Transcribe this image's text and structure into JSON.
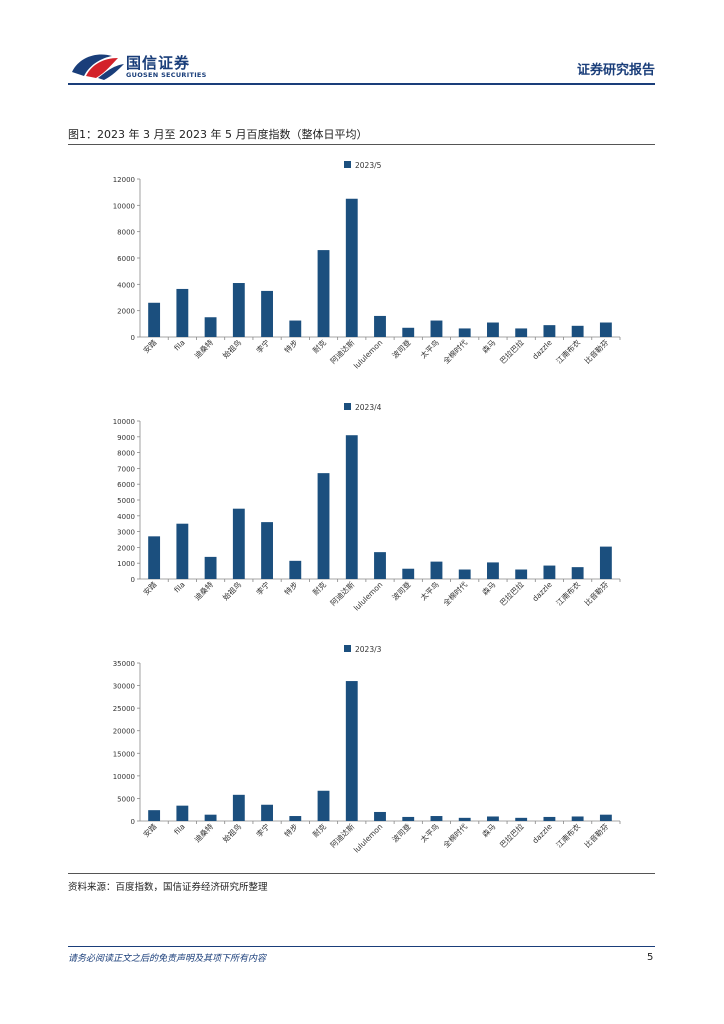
{
  "header": {
    "brand_cn": "国信证券",
    "brand_en": "GUOSEN SECURITIES",
    "report_type": "证券研究报告",
    "logo_icon": "guosen-logo",
    "brand_color": "#1a3e7a",
    "logo_red": "#d3222a"
  },
  "figure": {
    "title": "图1：2023 年 3 月至 2023 年 5 月百度指数（整体日平均）",
    "source": "资料来源：百度指数，国信证券经济研究所整理"
  },
  "footer": {
    "disclaimer": "请务必阅读正文之后的免责声明及其项下所有内容",
    "page": "5"
  },
  "chart_data": [
    {
      "type": "bar",
      "series_name": "2023/5",
      "categories": [
        "安踏",
        "fila",
        "迪桑特",
        "始祖鸟",
        "李宁",
        "特步",
        "耐克",
        "阿迪达斯",
        "lululemon",
        "波司登",
        "太平鸟",
        "全棉时代",
        "森马",
        "巴拉巴拉",
        "dazzle",
        "江南布衣",
        "比音勒芬"
      ],
      "values": [
        2600,
        3650,
        1500,
        4100,
        3500,
        1250,
        6600,
        10500,
        1600,
        700,
        1250,
        650,
        1100,
        650,
        900,
        850,
        1100
      ],
      "ylim": [
        0,
        12000
      ],
      "yticks": [
        0,
        2000,
        4000,
        6000,
        8000,
        10000,
        12000
      ],
      "bar_color": "#1b4f7e"
    },
    {
      "type": "bar",
      "series_name": "2023/4",
      "categories": [
        "安踏",
        "fila",
        "迪桑特",
        "始祖鸟",
        "李宁",
        "特步",
        "耐克",
        "阿迪达斯",
        "lululemon",
        "波司登",
        "太平鸟",
        "全棉时代",
        "森马",
        "巴拉巴拉",
        "dazzle",
        "江南布衣",
        "比音勒芬"
      ],
      "values": [
        2700,
        3500,
        1400,
        4450,
        3600,
        1150,
        6700,
        9100,
        1700,
        650,
        1100,
        600,
        1050,
        600,
        850,
        750,
        2050
      ],
      "ylim": [
        0,
        10000
      ],
      "yticks": [
        0,
        1000,
        2000,
        3000,
        4000,
        5000,
        6000,
        7000,
        8000,
        9000,
        10000
      ],
      "bar_color": "#1b4f7e"
    },
    {
      "type": "bar",
      "series_name": "2023/3",
      "categories": [
        "安踏",
        "fila",
        "迪桑特",
        "始祖鸟",
        "李宁",
        "特步",
        "耐克",
        "阿迪达斯",
        "lululemon",
        "波司登",
        "太平鸟",
        "全棉时代",
        "森马",
        "巴拉巴拉",
        "dazzle",
        "江南布衣",
        "比音勒芬"
      ],
      "values": [
        2400,
        3400,
        1400,
        5800,
        3600,
        1100,
        6700,
        31000,
        2000,
        900,
        1100,
        700,
        1000,
        700,
        900,
        1000,
        1400
      ],
      "ylim": [
        0,
        35000
      ],
      "yticks": [
        0,
        5000,
        10000,
        15000,
        20000,
        25000,
        30000,
        35000
      ],
      "bar_color": "#1b4f7e"
    }
  ]
}
